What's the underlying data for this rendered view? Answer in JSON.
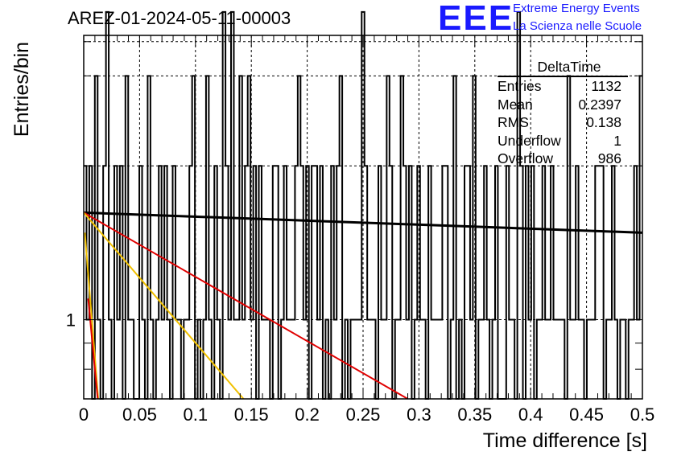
{
  "title": "AREZ-01-2024-05-11-00003",
  "logo": {
    "mark": "EEE",
    "line1": "Extreme Energy Events",
    "line2": "La Scienza nelle Scuole"
  },
  "stats_box": {
    "title": "DeltaTime",
    "rows": [
      {
        "label": "Entries",
        "value": "1132"
      },
      {
        "label": "Mean",
        "value": "0.2397"
      },
      {
        "label": "RMS",
        "value": "0.138"
      },
      {
        "label": "Underflow",
        "value": "1"
      },
      {
        "label": "Overflow",
        "value": "986"
      }
    ]
  },
  "chart_data": {
    "type": "histogram",
    "title": "AREZ-01-2024-05-11-00003",
    "xlabel": "Time difference [s]",
    "ylabel": "Entries/bin",
    "xlim": [
      0,
      0.5
    ],
    "ylim": [
      0.7,
      3.6
    ],
    "yscale": "log",
    "x_ticks": [
      "0",
      "0.05",
      "0.1",
      "0.15",
      "0.2",
      "0.25",
      "0.3",
      "0.35",
      "0.4",
      "0.45",
      "0.5"
    ],
    "y_ticks": [
      "1"
    ],
    "grid": true,
    "bin_width": 0.005,
    "bin_counts": [
      2,
      2,
      3,
      2,
      1,
      1,
      2,
      1,
      1,
      4,
      3,
      2,
      1,
      0,
      3,
      0,
      1,
      2,
      2,
      1,
      0,
      3,
      1,
      3,
      1,
      0,
      2,
      3,
      1,
      1,
      0,
      2,
      1,
      3,
      1,
      3,
      2,
      1,
      2,
      4,
      2,
      4,
      1,
      1,
      2,
      2,
      0,
      1,
      0,
      0,
      0,
      3,
      1,
      3,
      2,
      1,
      1,
      0,
      2,
      1,
      1,
      0,
      1,
      0,
      2,
      3,
      2,
      1,
      0,
      3,
      1,
      3,
      3,
      2,
      1,
      1,
      2,
      3,
      0,
      3,
      0,
      1,
      2,
      2,
      0,
      0,
      2,
      3,
      1,
      3,
      0,
      1,
      2,
      2,
      2,
      1,
      2,
      2,
      1,
      1,
      3,
      1,
      2,
      0,
      0,
      1,
      0,
      1,
      1,
      2,
      1,
      1,
      0,
      3,
      0,
      3,
      1,
      2,
      1,
      1,
      2,
      0,
      1,
      1,
      4,
      0,
      1,
      1,
      1,
      1,
      1,
      4,
      0,
      0,
      1,
      3,
      1,
      1,
      2,
      1,
      0,
      0,
      3,
      1,
      4,
      1,
      1,
      1,
      2,
      1,
      0,
      1,
      0,
      3,
      1,
      2,
      2,
      2,
      1,
      1,
      3,
      1,
      1,
      1,
      1,
      1,
      1,
      2,
      1,
      1,
      0,
      0,
      3,
      1,
      2,
      2,
      1,
      1,
      2,
      3,
      0,
      2,
      3,
      1,
      2,
      2,
      1,
      1,
      3,
      0,
      1,
      1,
      1,
      1,
      2,
      1,
      2,
      1,
      1,
      1,
      1,
      1,
      3,
      1,
      2,
      1,
      3,
      1,
      1,
      3,
      0,
      2,
      1,
      1,
      3,
      2,
      1,
      3,
      2,
      1,
      1,
      1,
      1,
      1,
      2,
      1,
      1,
      0,
      2,
      0,
      2,
      2,
      3,
      2,
      2,
      1,
      1,
      1,
      2,
      1,
      0,
      2,
      1,
      1,
      2,
      3,
      3,
      0,
      1,
      1,
      3,
      2,
      2,
      2,
      1,
      2,
      0,
      3,
      2,
      1,
      3,
      1,
      3,
      1,
      4,
      2,
      2,
      1,
      4,
      3,
      1,
      1,
      1,
      1,
      2,
      1,
      3,
      2,
      2,
      2,
      1,
      2,
      3,
      1,
      3,
      1,
      2,
      1,
      0,
      2,
      2,
      2,
      1,
      2,
      2,
      2,
      4,
      1,
      2,
      1,
      3,
      3,
      0,
      3,
      1,
      1,
      2,
      1,
      0,
      2,
      3,
      1,
      1,
      1,
      1,
      3,
      3,
      1,
      1,
      3,
      2,
      1,
      2,
      1,
      0,
      2,
      4,
      2,
      2,
      1,
      1,
      1,
      1,
      3,
      2,
      1,
      1,
      2,
      1,
      3,
      0,
      1,
      1,
      2,
      3,
      1,
      2,
      2,
      3,
      1,
      1,
      1,
      3,
      2,
      1,
      1,
      1,
      1,
      1,
      2,
      0,
      2,
      0,
      1,
      2,
      1,
      1,
      0,
      2,
      2,
      0,
      1,
      0,
      4,
      1,
      1,
      3,
      1,
      3,
      1,
      4,
      0,
      2,
      1,
      2,
      3,
      1,
      1,
      2,
      3,
      1,
      0,
      1,
      1,
      1,
      0,
      2,
      1,
      1,
      1,
      2,
      1,
      1,
      2,
      3,
      1,
      2,
      1,
      0,
      1,
      1,
      3,
      1,
      2,
      2,
      1,
      1,
      0,
      2,
      2,
      0,
      2,
      1,
      1,
      3,
      3,
      1,
      2,
      1,
      1,
      2,
      3,
      0,
      1,
      1,
      1,
      3,
      1,
      3,
      2,
      1,
      1,
      1,
      1,
      2,
      1,
      1,
      2,
      2,
      3,
      1,
      0,
      1,
      2,
      1,
      3,
      3,
      2,
      2,
      1,
      2,
      1,
      2,
      1,
      2,
      0,
      1,
      1,
      1,
      1,
      1,
      0,
      1,
      1,
      1,
      3,
      0,
      2,
      2,
      2,
      2,
      0,
      1,
      3,
      1,
      0,
      1,
      1,
      0,
      2,
      2,
      3,
      1,
      1,
      1,
      0,
      1,
      3,
      1,
      1,
      2,
      2,
      2,
      0,
      0,
      2,
      1,
      2,
      1,
      2,
      1,
      2,
      0,
      1,
      2,
      1,
      3,
      1,
      0,
      1,
      1,
      2,
      1,
      2,
      3,
      1,
      1,
      1,
      1,
      1,
      0,
      2,
      1,
      1,
      2,
      0,
      1,
      3,
      1,
      2,
      2,
      2,
      1,
      1,
      1,
      2,
      2,
      3,
      2,
      1,
      1,
      1,
      2,
      2,
      2,
      1,
      0,
      1,
      1,
      1,
      1,
      2,
      2,
      3,
      2,
      1,
      1,
      1,
      0,
      3,
      1,
      1,
      0,
      1,
      3,
      1,
      1,
      1,
      2,
      1,
      2,
      2,
      1,
      0,
      3,
      1,
      2,
      1,
      2,
      1,
      1,
      2,
      1,
      1,
      3,
      2,
      1,
      1,
      1,
      2,
      1,
      2,
      3,
      2,
      1,
      1,
      1,
      2,
      1,
      2,
      2,
      1,
      2,
      2,
      1,
      2,
      1,
      1,
      1,
      1,
      1,
      1,
      3,
      2,
      1,
      1,
      2,
      2,
      1,
      1,
      1,
      0,
      0,
      1,
      1,
      1,
      2,
      1,
      1,
      1,
      1,
      1,
      1,
      3,
      2,
      0,
      2,
      1,
      2,
      2,
      1,
      1,
      0,
      0,
      0,
      0,
      3,
      2,
      1,
      2,
      1,
      1,
      1,
      1,
      1,
      2,
      0,
      1,
      2,
      1,
      1,
      2,
      0,
      1,
      2,
      1,
      0,
      1,
      0,
      1,
      0,
      2,
      1,
      1,
      1,
      1,
      1,
      1,
      1,
      1,
      0,
      0,
      1,
      3,
      1,
      2,
      0,
      3,
      1,
      2,
      1,
      0,
      2,
      1,
      1,
      1,
      0,
      3,
      0,
      2,
      1,
      2,
      3,
      1,
      1,
      1,
      2,
      1,
      1,
      0,
      1,
      2,
      1,
      1,
      1,
      0,
      1,
      2,
      2,
      1,
      2,
      1,
      3,
      1,
      3,
      2,
      1,
      1,
      3,
      2,
      0,
      2,
      0,
      3,
      1,
      1,
      2,
      1,
      2,
      1,
      2,
      0,
      1,
      1,
      1,
      1,
      1,
      2,
      1,
      1,
      2,
      1,
      0,
      2,
      0,
      1,
      1,
      2,
      1,
      2,
      1,
      0,
      1,
      1,
      2,
      1,
      0,
      1,
      3,
      1,
      1,
      2,
      2,
      1,
      2,
      0,
      0,
      1,
      1,
      1,
      2,
      1,
      1,
      3,
      0,
      1,
      1,
      3,
      1,
      1,
      0,
      1,
      1,
      0,
      1,
      1,
      1,
      2,
      2,
      1,
      1,
      1,
      1,
      2,
      1,
      1,
      1,
      1,
      2,
      1,
      3,
      0,
      1,
      2,
      1,
      1,
      1,
      1,
      2,
      3,
      2,
      2,
      1,
      2,
      1,
      1,
      0,
      1,
      3,
      2,
      1,
      0,
      2,
      1,
      1,
      1,
      1,
      0,
      1,
      1,
      0,
      1,
      1,
      2,
      1,
      2,
      1,
      1,
      1,
      0,
      1,
      2,
      1,
      2,
      2,
      1,
      2,
      0,
      2,
      1,
      2,
      1,
      1,
      2,
      0,
      1,
      1,
      1,
      2,
      1,
      2,
      1,
      1,
      1,
      1,
      2,
      2,
      1,
      0,
      1,
      2,
      1,
      1,
      1,
      1,
      1,
      2,
      1,
      1,
      0,
      0,
      1,
      2,
      1,
      2,
      0,
      1,
      2,
      1,
      1,
      0,
      1,
      3,
      1,
      1,
      2,
      3,
      1,
      1,
      2,
      1,
      1,
      2,
      2,
      1,
      1,
      2,
      1,
      0,
      2,
      0,
      1,
      1,
      1,
      0,
      1,
      1,
      1,
      1,
      0,
      2,
      1,
      1,
      2,
      1,
      2,
      2,
      1,
      2,
      1,
      1,
      2,
      1,
      3,
      1,
      2,
      2,
      1,
      1,
      1,
      1,
      1,
      1,
      1,
      1,
      2,
      1,
      1,
      2,
      1,
      1,
      1,
      1,
      3,
      1,
      2,
      1,
      1,
      3,
      2,
      1,
      1,
      2,
      2,
      1,
      2,
      0,
      1,
      2,
      2,
      1,
      3,
      1,
      1,
      1,
      1,
      1,
      2,
      1,
      0,
      1,
      1,
      2,
      3,
      1,
      0,
      1,
      0,
      1,
      0,
      1,
      1,
      0,
      1,
      1,
      2,
      1,
      2,
      1,
      1,
      0,
      1,
      1,
      1,
      1,
      2,
      1,
      2,
      1,
      0,
      1,
      1,
      0,
      1,
      1,
      1,
      1,
      2,
      1,
      1,
      1,
      1,
      1,
      1,
      0,
      0,
      1,
      2,
      1,
      1,
      2,
      1,
      1,
      1,
      2,
      1,
      1,
      2,
      1,
      1,
      0,
      1,
      2,
      0,
      1,
      1,
      3,
      1,
      1,
      1,
      0,
      1,
      0,
      2,
      1,
      1,
      1,
      2,
      0,
      2,
      1,
      1,
      1,
      2,
      1,
      1,
      0,
      1,
      1,
      1,
      1,
      0,
      2,
      1,
      2,
      1,
      0,
      1,
      0,
      1,
      2,
      1,
      2,
      1,
      3,
      1,
      1,
      0,
      1,
      2,
      1,
      1,
      1,
      0,
      1,
      1,
      2,
      1,
      1,
      3,
      2,
      2,
      1,
      1,
      1,
      0,
      1,
      1
    ],
    "visible_bins_counts": [
      2,
      1,
      2,
      0,
      3,
      1,
      0,
      2,
      4,
      1,
      0,
      2,
      1,
      2,
      0,
      3,
      1,
      1,
      0,
      0,
      2,
      1,
      0,
      3,
      1,
      0,
      1,
      2,
      1,
      2,
      1,
      0,
      2,
      1,
      1,
      0,
      1,
      1,
      2,
      3,
      0,
      1,
      0,
      1,
      3,
      1,
      0,
      2,
      1,
      0,
      4,
      2,
      1,
      4,
      1,
      1,
      3,
      1,
      2,
      3,
      1,
      2,
      0,
      2,
      1,
      1,
      1,
      0,
      2,
      2,
      0,
      1,
      2,
      1,
      1,
      1,
      2,
      3,
      2,
      1,
      2,
      0,
      2,
      2,
      1,
      2,
      0,
      1,
      0,
      2,
      1,
      2,
      3,
      0,
      1,
      0,
      1,
      1,
      1,
      1,
      4,
      2,
      1,
      1,
      1,
      0,
      2,
      1,
      1,
      3,
      2,
      0,
      1,
      1,
      3,
      2,
      1,
      2,
      0,
      1,
      2,
      1,
      1,
      0,
      2,
      1,
      1,
      1,
      1,
      2,
      2,
      0,
      1,
      3,
      0,
      1,
      0,
      2,
      2,
      1,
      3,
      0,
      1,
      1,
      2,
      1,
      0,
      1,
      2,
      0,
      0,
      0,
      2,
      1,
      1,
      0,
      4,
      2,
      0,
      2,
      1,
      2,
      0,
      1,
      1,
      2,
      1,
      1,
      2,
      1,
      1,
      1,
      1,
      0,
      3,
      1,
      1,
      2,
      1,
      1,
      0,
      1,
      1,
      1,
      2,
      2,
      2,
      0,
      1,
      1,
      2,
      1,
      0,
      1,
      1,
      0,
      1,
      1,
      2,
      1,
      3
    ],
    "fit_lines": [
      {
        "color": "#000000",
        "x": [
          0,
          0.5
        ],
        "y": [
          1.62,
          1.48
        ]
      },
      {
        "color": "#e00000",
        "x": [
          0,
          0.29
        ],
        "y": [
          1.62,
          0.7
        ]
      },
      {
        "color": "#f0c000",
        "x": [
          0,
          0.143
        ],
        "y": [
          1.62,
          0.7
        ]
      },
      {
        "color": "#f0c000",
        "x": [
          0.001,
          0.013
        ],
        "y": [
          1.48,
          0.7
        ]
      },
      {
        "color": "#e00000",
        "x": [
          0.004,
          0.0125
        ],
        "y": [
          1.1,
          0.7
        ]
      }
    ]
  },
  "colors": {
    "histogram": "#000000",
    "grid": "#000000",
    "logo": "#1a1aff"
  }
}
